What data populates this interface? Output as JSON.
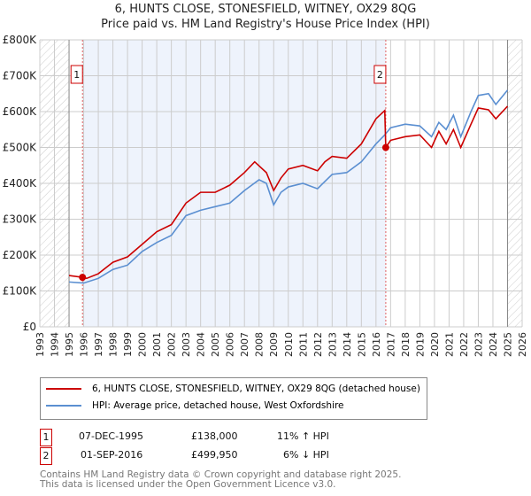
{
  "title": "6, HUNTS CLOSE, STONESFIELD, WITNEY, OX29 8QG",
  "subtitle": "Price paid vs. HM Land Registry's House Price Index (HPI)",
  "colors": {
    "property": "#cc0000",
    "hpi": "#5b8fd1",
    "shade": "#eef3fc"
  },
  "chart_data": {
    "type": "line",
    "xlim": [
      1993,
      2026
    ],
    "ylim": [
      0,
      800000
    ],
    "x_ticks": [
      "1993",
      "1994",
      "1995",
      "1996",
      "1997",
      "1998",
      "1999",
      "2000",
      "2001",
      "2002",
      "2003",
      "2004",
      "2005",
      "2006",
      "2007",
      "2008",
      "2009",
      "2010",
      "2011",
      "2012",
      "2013",
      "2014",
      "2015",
      "2016",
      "2017",
      "2018",
      "2019",
      "2020",
      "2021",
      "2022",
      "2023",
      "2024",
      "2025",
      "2026"
    ],
    "y_ticks": [
      {
        "v": 0,
        "label": "£0"
      },
      {
        "v": 100000,
        "label": "£100K"
      },
      {
        "v": 200000,
        "label": "£200K"
      },
      {
        "v": 300000,
        "label": "£300K"
      },
      {
        "v": 400000,
        "label": "£400K"
      },
      {
        "v": 500000,
        "label": "£500K"
      },
      {
        "v": 600000,
        "label": "£600K"
      },
      {
        "v": 700000,
        "label": "£700K"
      },
      {
        "v": 800000,
        "label": "£800K"
      }
    ],
    "hatched_ranges": [
      [
        1993,
        1995
      ],
      [
        2025,
        2026
      ]
    ],
    "sales": [
      {
        "label": "1",
        "x": 1995.92,
        "y": 138000
      },
      {
        "label": "2",
        "x": 2016.67,
        "y": 499950
      }
    ],
    "series": [
      {
        "name": "6, HUNTS CLOSE, STONESFIELD, WITNEY, OX29 8QG (detached house)",
        "key": "property",
        "points": [
          [
            1995,
            143
          ],
          [
            1995.92,
            138
          ],
          [
            1996.2,
            135
          ],
          [
            1997,
            148
          ],
          [
            1998,
            180
          ],
          [
            1999,
            195
          ],
          [
            2000,
            230
          ],
          [
            2001,
            265
          ],
          [
            2002,
            285
          ],
          [
            2003,
            345
          ],
          [
            2004,
            375
          ],
          [
            2005,
            375
          ],
          [
            2006,
            395
          ],
          [
            2007,
            430
          ],
          [
            2007.7,
            460
          ],
          [
            2008.5,
            430
          ],
          [
            2009,
            380
          ],
          [
            2009.5,
            415
          ],
          [
            2010,
            440
          ],
          [
            2011,
            450
          ],
          [
            2012,
            435
          ],
          [
            2012.5,
            460
          ],
          [
            2013,
            475
          ],
          [
            2014,
            470
          ],
          [
            2015,
            510
          ],
          [
            2016,
            580
          ],
          [
            2016.6,
            603
          ],
          [
            2016.67,
            500
          ],
          [
            2017,
            520
          ],
          [
            2018,
            530
          ],
          [
            2019,
            535
          ],
          [
            2019.8,
            500
          ],
          [
            2020.3,
            545
          ],
          [
            2020.8,
            510
          ],
          [
            2021.3,
            550
          ],
          [
            2021.8,
            500
          ],
          [
            2022.5,
            565
          ],
          [
            2023,
            610
          ],
          [
            2023.7,
            605
          ],
          [
            2024.2,
            580
          ],
          [
            2025,
            615
          ]
        ]
      },
      {
        "name": "HPI: Average price, detached house, West Oxfordshire",
        "key": "hpi",
        "points": [
          [
            1995,
            125
          ],
          [
            1996,
            122
          ],
          [
            1997,
            135
          ],
          [
            1998,
            160
          ],
          [
            1999,
            172
          ],
          [
            2000,
            210
          ],
          [
            2001,
            235
          ],
          [
            2002,
            255
          ],
          [
            2003,
            310
          ],
          [
            2004,
            325
          ],
          [
            2005,
            335
          ],
          [
            2006,
            345
          ],
          [
            2007,
            380
          ],
          [
            2008,
            410
          ],
          [
            2008.5,
            400
          ],
          [
            2009,
            340
          ],
          [
            2009.5,
            375
          ],
          [
            2010,
            390
          ],
          [
            2011,
            400
          ],
          [
            2012,
            385
          ],
          [
            2012.5,
            405
          ],
          [
            2013,
            425
          ],
          [
            2014,
            430
          ],
          [
            2015,
            460
          ],
          [
            2016,
            510
          ],
          [
            2016.6,
            535
          ],
          [
            2017,
            555
          ],
          [
            2018,
            565
          ],
          [
            2019,
            560
          ],
          [
            2019.8,
            530
          ],
          [
            2020.3,
            570
          ],
          [
            2020.8,
            550
          ],
          [
            2021.3,
            590
          ],
          [
            2021.8,
            530
          ],
          [
            2022.5,
            600
          ],
          [
            2023,
            645
          ],
          [
            2023.7,
            650
          ],
          [
            2024.2,
            620
          ],
          [
            2025,
            660
          ]
        ]
      }
    ]
  },
  "legend": {
    "property": "6, HUNTS CLOSE, STONESFIELD, WITNEY, OX29 8QG (detached house)",
    "hpi": "HPI: Average price, detached house, West Oxfordshire"
  },
  "transactions": [
    {
      "num": "1",
      "date": "07-DEC-1995",
      "price": "£138,000",
      "hpi": "11% ↑ HPI"
    },
    {
      "num": "2",
      "date": "01-SEP-2016",
      "price": "£499,950",
      "hpi": "6% ↓ HPI"
    }
  ],
  "footer": [
    "Contains HM Land Registry data © Crown copyright and database right 2025.",
    "This data is licensed under the Open Government Licence v3.0."
  ]
}
